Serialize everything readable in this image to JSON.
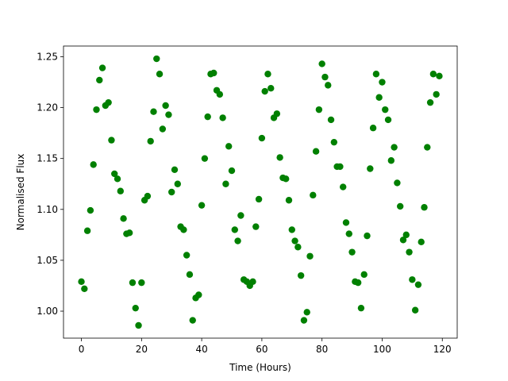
{
  "chart_data": {
    "type": "scatter",
    "xlabel": "Time (Hours)",
    "ylabel": "Normalised Flux",
    "color": "#008000",
    "x": [
      0,
      1,
      2,
      3,
      4,
      5,
      6,
      7,
      8,
      9,
      10,
      11,
      12,
      13,
      14,
      15,
      16,
      17,
      18,
      19,
      20,
      21,
      22,
      23,
      24,
      25,
      26,
      27,
      28,
      29,
      30,
      31,
      32,
      33,
      34,
      35,
      36,
      37,
      38,
      39,
      40,
      41,
      42,
      43,
      44,
      45,
      46,
      47,
      48,
      49,
      50,
      51,
      52,
      53,
      54,
      55,
      56,
      57,
      58,
      59,
      60,
      61,
      62,
      63,
      64,
      65,
      66,
      67,
      68,
      69,
      70,
      71,
      72,
      73,
      74,
      75,
      76,
      77,
      78,
      79,
      80,
      81,
      82,
      83,
      84,
      85,
      86,
      87,
      88,
      89,
      90,
      91,
      92,
      93,
      94,
      95,
      96,
      97,
      98,
      99,
      100,
      101,
      102,
      103,
      104,
      105,
      106,
      107,
      108,
      109,
      110,
      111,
      112,
      113,
      114,
      115,
      116,
      117,
      118,
      119
    ],
    "values": [
      1.029,
      1.022,
      1.079,
      1.099,
      1.144,
      1.198,
      1.227,
      1.239,
      1.202,
      1.205,
      1.168,
      1.135,
      1.13,
      1.118,
      1.091,
      1.076,
      1.077,
      1.028,
      1.003,
      0.986,
      1.028,
      1.109,
      1.113,
      1.167,
      1.196,
      1.248,
      1.233,
      1.179,
      1.202,
      1.193,
      1.117,
      1.139,
      1.125,
      1.083,
      1.08,
      1.055,
      1.036,
      0.991,
      1.013,
      1.016,
      1.104,
      1.15,
      1.191,
      1.233,
      1.234,
      1.217,
      1.213,
      1.19,
      1.125,
      1.162,
      1.138,
      1.08,
      1.069,
      1.094,
      1.031,
      1.029,
      1.025,
      1.029,
      1.083,
      1.11,
      1.17,
      1.216,
      1.233,
      1.219,
      1.19,
      1.194,
      1.151,
      1.131,
      1.13,
      1.109,
      1.08,
      1.069,
      1.063,
      1.035,
      0.991,
      0.999,
      1.054,
      1.114,
      1.157,
      1.198,
      1.243,
      1.23,
      1.222,
      1.188,
      1.166,
      1.142,
      1.142,
      1.122,
      1.087,
      1.076,
      1.058,
      1.029,
      1.028,
      1.003,
      1.036,
      1.074,
      1.14,
      1.18,
      1.233,
      1.21,
      1.225,
      1.198,
      1.188,
      1.148,
      1.161,
      1.126,
      1.103,
      1.07,
      1.075,
      1.058,
      1.031,
      1.001,
      1.026,
      1.068,
      1.102,
      1.161,
      1.205,
      1.233,
      1.213,
      1.231
    ],
    "xlim": [
      -5.95,
      124.95
    ],
    "xticks": [
      0,
      20,
      40,
      60,
      80,
      100,
      120
    ],
    "ylim": [
      0.9735,
      1.2605
    ],
    "yticks": [
      {
        "value": 1.0,
        "label": "1.00"
      },
      1.05,
      {
        "value": 1.1,
        "label": "1.10"
      },
      1.15,
      {
        "value": 1.2,
        "label": "1.20"
      },
      1.25
    ]
  }
}
